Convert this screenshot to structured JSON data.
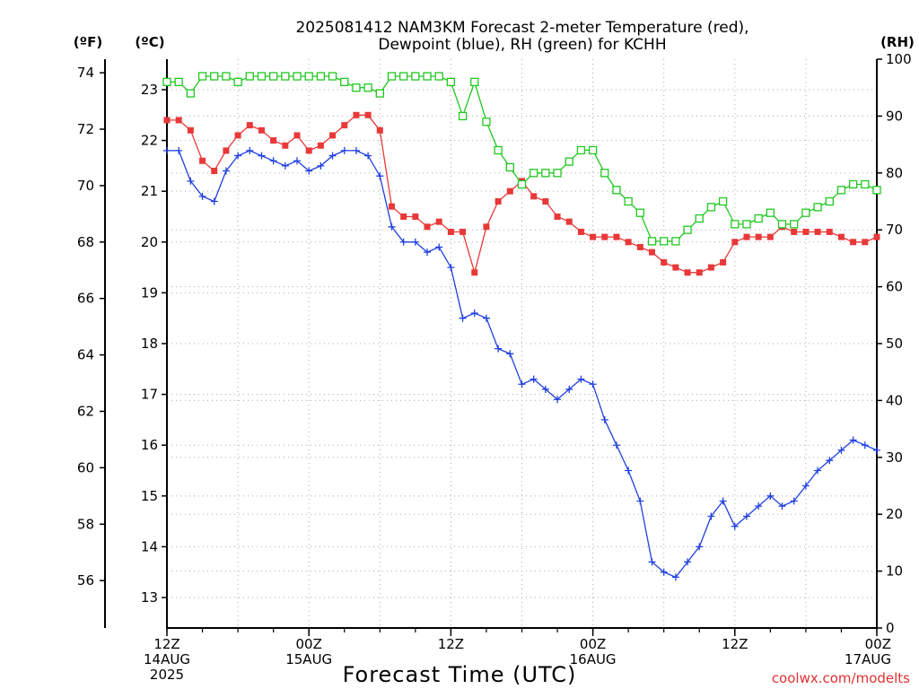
{
  "title": {
    "line1": "2025081412 NAM3KM Forecast 2-meter Temperature (red),",
    "line2": "Dewpoint (blue), RH (green) for KCHH"
  },
  "units": {
    "fahrenheit": "(ºF)",
    "celsius": "(ºC)",
    "rh": "(RH)"
  },
  "xlabel": "Forecast Time (UTC)",
  "credit": "coolwx.com/modelts",
  "x_ticks": [
    {
      "hour": 0,
      "lines": [
        "12Z",
        "14AUG",
        "2025"
      ]
    },
    {
      "hour": 12,
      "lines": [
        "00Z",
        "15AUG"
      ]
    },
    {
      "hour": 24,
      "lines": [
        "12Z"
      ]
    },
    {
      "hour": 36,
      "lines": [
        "00Z",
        "16AUG"
      ]
    },
    {
      "hour": 48,
      "lines": [
        "12Z"
      ]
    },
    {
      "hour": 60,
      "lines": [
        "00Z",
        "17AUG"
      ]
    }
  ],
  "colors": {
    "temperature": "#e83838",
    "dewpoint": "#2040e0",
    "rh": "#20c820"
  },
  "chart_data": {
    "type": "line",
    "x_unit": "forecast hours since 2025-08-14 12Z",
    "x_range": [
      0,
      60
    ],
    "celsius_range": [
      12.4,
      23.6
    ],
    "celsius_ticks": [
      13,
      14,
      15,
      16,
      17,
      18,
      19,
      20,
      21,
      22,
      23
    ],
    "fahrenheit_ticks": [
      56,
      58,
      60,
      62,
      64,
      66,
      68,
      70,
      72,
      74
    ],
    "rh_range": [
      0,
      100
    ],
    "rh_ticks": [
      0,
      10,
      20,
      30,
      40,
      50,
      60,
      70,
      80,
      90,
      100
    ],
    "grid": true,
    "series": [
      {
        "name": "Temperature",
        "axis": "celsius",
        "marker": "filled-square",
        "x": [
          0,
          1,
          2,
          3,
          4,
          5,
          6,
          7,
          8,
          9,
          10,
          11,
          12,
          13,
          14,
          15,
          16,
          17,
          18,
          19,
          20,
          21,
          22,
          23,
          24,
          25,
          26,
          27,
          28,
          29,
          30,
          31,
          32,
          33,
          34,
          35,
          36,
          37,
          38,
          39,
          40,
          41,
          42,
          43,
          44,
          45,
          46,
          47,
          48,
          49,
          50,
          51,
          52,
          53,
          54,
          55,
          56,
          57,
          58,
          59,
          60
        ],
        "values": [
          22.4,
          22.4,
          22.2,
          21.6,
          21.4,
          21.8,
          22.1,
          22.3,
          22.2,
          22.0,
          21.9,
          22.1,
          21.8,
          21.9,
          22.1,
          22.3,
          22.5,
          22.5,
          22.2,
          20.7,
          20.5,
          20.5,
          20.3,
          20.4,
          20.2,
          20.2,
          19.4,
          20.3,
          20.8,
          21.0,
          21.2,
          20.9,
          20.8,
          20.5,
          20.4,
          20.2,
          20.1,
          20.1,
          20.1,
          20.0,
          19.9,
          19.8,
          19.6,
          19.5,
          19.4,
          19.4,
          19.5,
          19.6,
          20.0,
          20.1,
          20.1,
          20.1,
          20.3,
          20.2,
          20.2,
          20.2,
          20.2,
          20.1,
          20.0,
          20.0,
          20.1
        ]
      },
      {
        "name": "Dewpoint",
        "axis": "celsius",
        "marker": "plus",
        "x": [
          0,
          1,
          2,
          3,
          4,
          5,
          6,
          7,
          8,
          9,
          10,
          11,
          12,
          13,
          14,
          15,
          16,
          17,
          18,
          19,
          20,
          21,
          22,
          23,
          24,
          25,
          26,
          27,
          28,
          29,
          30,
          31,
          32,
          33,
          34,
          35,
          36,
          37,
          38,
          39,
          40,
          41,
          42,
          43,
          44,
          45,
          46,
          47,
          48,
          49,
          50,
          51,
          52,
          53,
          54,
          55,
          56,
          57,
          58,
          59,
          60
        ],
        "values": [
          21.8,
          21.8,
          21.2,
          20.9,
          20.8,
          21.4,
          21.7,
          21.8,
          21.7,
          21.6,
          21.5,
          21.6,
          21.4,
          21.5,
          21.7,
          21.8,
          21.8,
          21.7,
          21.3,
          20.3,
          20.0,
          20.0,
          19.8,
          19.9,
          19.5,
          18.5,
          18.6,
          18.5,
          17.9,
          17.8,
          17.2,
          17.3,
          17.1,
          16.9,
          17.1,
          17.3,
          17.2,
          16.5,
          16.0,
          15.5,
          14.9,
          13.7,
          13.5,
          13.4,
          13.7,
          14.0,
          14.6,
          14.9,
          14.4,
          14.6,
          14.8,
          15.0,
          14.8,
          14.9,
          15.2,
          15.5,
          15.7,
          15.9,
          16.1,
          16.0,
          15.9
        ]
      },
      {
        "name": "RH",
        "axis": "rh",
        "marker": "open-square",
        "x": [
          0,
          1,
          2,
          3,
          4,
          5,
          6,
          7,
          8,
          9,
          10,
          11,
          12,
          13,
          14,
          15,
          16,
          17,
          18,
          19,
          20,
          21,
          22,
          23,
          24,
          25,
          26,
          27,
          28,
          29,
          30,
          31,
          32,
          33,
          34,
          35,
          36,
          37,
          38,
          39,
          40,
          41,
          42,
          43,
          44,
          45,
          46,
          47,
          48,
          49,
          50,
          51,
          52,
          53,
          54,
          55,
          56,
          57,
          58,
          59,
          60
        ],
        "values": [
          96,
          96,
          94,
          97,
          97,
          97,
          96,
          97,
          97,
          97,
          97,
          97,
          97,
          97,
          97,
          96,
          95,
          95,
          94,
          97,
          97,
          97,
          97,
          97,
          96,
          90,
          96,
          89,
          84,
          81,
          78,
          80,
          80,
          80,
          82,
          84,
          84,
          80,
          77,
          75,
          73,
          68,
          68,
          68,
          70,
          72,
          74,
          75,
          71,
          71,
          72,
          73,
          71,
          71,
          73,
          74,
          75,
          77,
          78,
          78,
          77
        ]
      }
    ]
  }
}
